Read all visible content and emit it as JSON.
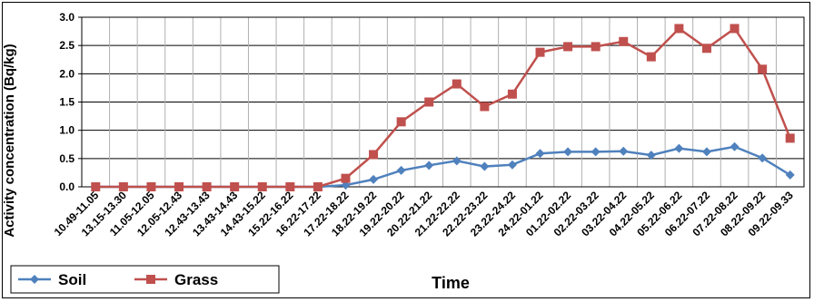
{
  "chart_data": {
    "type": "line",
    "xlabel": "Time",
    "ylabel": "Activity concentration (Bq/kg)",
    "ylim": [
      0,
      3.0
    ],
    "yticks": [
      "0.0",
      "0.5",
      "1.0",
      "1.5",
      "2.0",
      "2.5",
      "3.0"
    ],
    "grid": true,
    "legend_position": "bottom-left",
    "categories": [
      "10.49-11.05",
      "13.15-13.30",
      "11.05-12.05",
      "12.05-12.43",
      "12.43-13.43",
      "13.43-14.43",
      "14.43-15.22",
      "15.22-16.22",
      "16.22-17.22",
      "17.22-18.22",
      "18.22-19.22",
      "19.22-20.22",
      "20.22-21.22",
      "21.22-22.22",
      "22.22-23.22",
      "23.22-24.22",
      "24.22-01.22",
      "01.22-02.22",
      "02.22-03.22",
      "03.22-04.22",
      "04.22-05.22",
      "05.22-06.22",
      "06.22-07.22",
      "07.22-08.22",
      "08.22-09.22",
      "09.22-09.33"
    ],
    "series": [
      {
        "name": "Soil",
        "color": "#4f81bd",
        "marker": "diamond",
        "values": [
          0,
          0,
          0,
          0,
          0,
          0,
          0,
          0,
          0,
          0.03,
          0.13,
          0.29,
          0.38,
          0.46,
          0.36,
          0.39,
          0.59,
          0.62,
          0.62,
          0.63,
          0.56,
          0.68,
          0.62,
          0.71,
          0.51,
          0.21
        ]
      },
      {
        "name": "Grass",
        "color": "#c0504d",
        "marker": "square",
        "values": [
          0,
          0,
          0,
          0,
          0,
          0,
          0,
          0,
          0,
          0.15,
          0.57,
          1.15,
          1.5,
          1.82,
          1.42,
          1.64,
          2.38,
          2.48,
          2.48,
          2.57,
          2.3,
          2.8,
          2.45,
          2.8,
          2.08,
          0.86
        ]
      }
    ]
  }
}
